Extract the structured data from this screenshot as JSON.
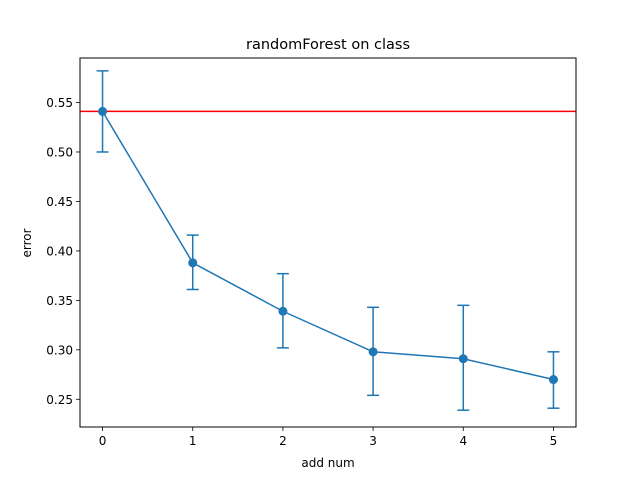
{
  "chart_data": {
    "type": "line",
    "title": "randomForest on class",
    "xlabel": "add num",
    "ylabel": "error",
    "xlim": [
      -0.25,
      5.25
    ],
    "ylim": [
      0.222,
      0.595
    ],
    "xticks": [
      "0",
      "1",
      "2",
      "3",
      "4",
      "5"
    ],
    "yticks": [
      "0.25",
      "0.30",
      "0.35",
      "0.40",
      "0.45",
      "0.50",
      "0.55"
    ],
    "grid": false,
    "legend": "none",
    "series": [
      {
        "color": "#1f77b4",
        "marker": "circle",
        "x": [
          0,
          1,
          2,
          3,
          4,
          5
        ],
        "y": [
          0.541,
          0.388,
          0.339,
          0.298,
          0.291,
          0.27
        ],
        "err_low": [
          0.5,
          0.361,
          0.302,
          0.254,
          0.239,
          0.241
        ],
        "err_high": [
          0.582,
          0.416,
          0.377,
          0.343,
          0.345,
          0.298
        ]
      }
    ],
    "hline": {
      "y": 0.541,
      "color": "#ff0000"
    }
  }
}
